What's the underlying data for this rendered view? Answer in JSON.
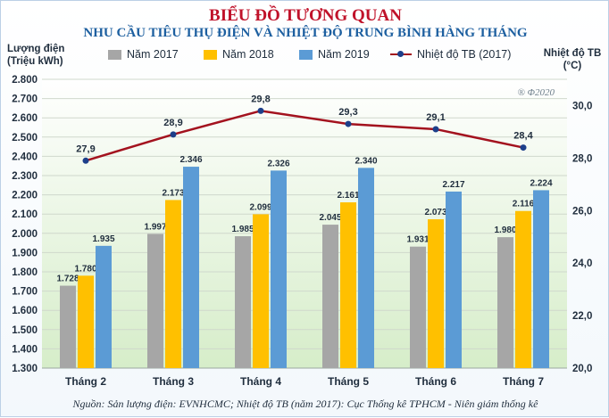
{
  "title_line1": "BIỂU ĐỒ TƯƠNG QUAN",
  "title_line2": "NHU CẦU TIÊU THỤ ĐIỆN VÀ NHIỆT ĐỘ TRUNG BÌNH HÀNG THÁNG",
  "ylabel_left_line1": "Lượng điện",
  "ylabel_left_line2": "(Triệu kWh)",
  "ylabel_right_line1": "Nhiệt độ TB",
  "ylabel_right_line2": "(°C)",
  "watermark": "® Φ2020",
  "source": "Nguồn: Sản lượng điện: EVNHCMC; Nhiệt độ TB (năm 2017): Cục Thống kê TPHCM - Niên giám thống kê",
  "chart_data": {
    "type": "bar",
    "categories": [
      "Tháng 2",
      "Tháng 3",
      "Tháng 4",
      "Tháng 5",
      "Tháng 6",
      "Tháng 7"
    ],
    "series": [
      {
        "name": "Năm 2017",
        "color": "#a6a6a6",
        "values": [
          1728,
          1997,
          1985,
          2045,
          1931,
          1980
        ],
        "labels": [
          "1.728",
          "1.997",
          "1.985",
          "2.045",
          "1.931",
          "1.980"
        ]
      },
      {
        "name": "Năm 2018",
        "color": "#ffc000",
        "values": [
          1780,
          2173,
          2099,
          2161,
          2073,
          2116
        ],
        "labels": [
          "1.780",
          "2.173",
          "2.099",
          "2.161",
          "2.073",
          "2.116"
        ]
      },
      {
        "name": "Năm 2019",
        "color": "#5b9bd5",
        "values": [
          1935,
          2346,
          2326,
          2340,
          2217,
          2224
        ],
        "labels": [
          "1.935",
          "2.346",
          "2.326",
          "2.340",
          "2.217",
          "2.224"
        ]
      }
    ],
    "line_series": {
      "name": "Nhiệt độ TB (2017)",
      "color": "#a3121e",
      "marker_color": "#1d3f8a",
      "values": [
        27.9,
        28.9,
        29.8,
        29.3,
        29.1,
        28.4
      ],
      "labels": [
        "27,9",
        "28,9",
        "29,8",
        "29,3",
        "29,1",
        "28,4"
      ]
    },
    "ylim": [
      1300,
      2800
    ],
    "y_ticks": [
      "1.300",
      "1.400",
      "1.500",
      "1.600",
      "1.700",
      "1.800",
      "1.900",
      "2.000",
      "2.100",
      "2.200",
      "2.300",
      "2.400",
      "2.500",
      "2.600",
      "2.700",
      "2.800"
    ],
    "y2lim": [
      20,
      31
    ],
    "y2_ticks": [
      "20,0",
      "22,0",
      "24,0",
      "26,0",
      "28,0",
      "30,0"
    ],
    "y2_tick_values": [
      20,
      22,
      24,
      26,
      28,
      30
    ],
    "grid": true,
    "legend_position": "top"
  }
}
